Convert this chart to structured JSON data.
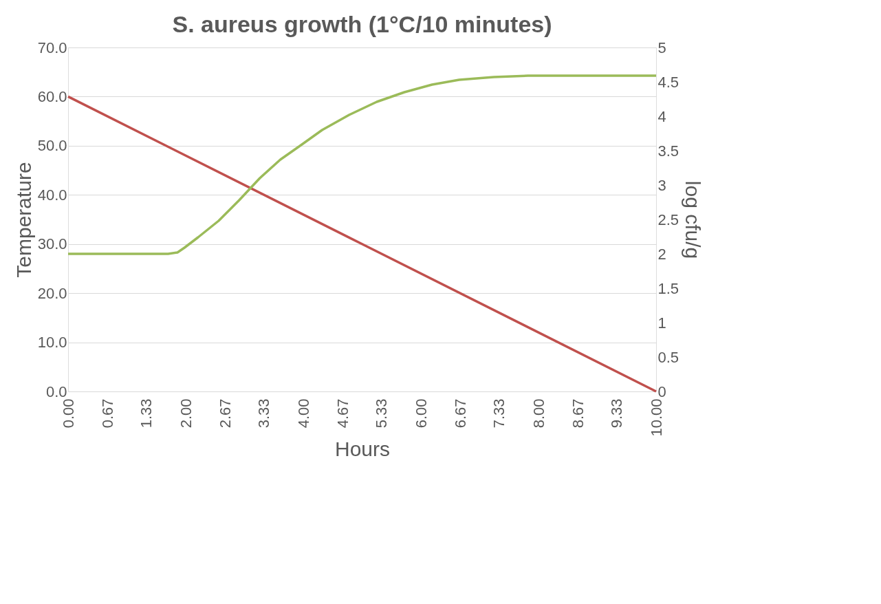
{
  "chart_data": {
    "type": "line",
    "title": "S. aureus growth (1°C/10 minutes)",
    "xlabel": "Hours",
    "ylabel": "Temperature",
    "y2label": "log cfu/g",
    "xlim": [
      0,
      10
    ],
    "xticks": [
      {
        "value": 0,
        "label": "0.00"
      },
      {
        "value": 0.67,
        "label": "0.67"
      },
      {
        "value": 1.33,
        "label": "1.33"
      },
      {
        "value": 2,
        "label": "2.00"
      },
      {
        "value": 2.67,
        "label": "2.67"
      },
      {
        "value": 3.33,
        "label": "3.33"
      },
      {
        "value": 4,
        "label": "4.00"
      },
      {
        "value": 4.67,
        "label": "4.67"
      },
      {
        "value": 5.33,
        "label": "5.33"
      },
      {
        "value": 6,
        "label": "6.00"
      },
      {
        "value": 6.67,
        "label": "6.67"
      },
      {
        "value": 7.33,
        "label": "7.33"
      },
      {
        "value": 8,
        "label": "8.00"
      },
      {
        "value": 8.67,
        "label": "8.67"
      },
      {
        "value": 9.33,
        "label": "9.33"
      },
      {
        "value": 10,
        "label": "10.00"
      }
    ],
    "ylim": [
      0,
      70
    ],
    "yticks": [
      {
        "value": 0,
        "label": "0.0"
      },
      {
        "value": 10,
        "label": "10.0"
      },
      {
        "value": 20,
        "label": "20.0"
      },
      {
        "value": 30,
        "label": "30.0"
      },
      {
        "value": 40,
        "label": "40.0"
      },
      {
        "value": 50,
        "label": "50.0"
      },
      {
        "value": 60,
        "label": "60.0"
      },
      {
        "value": 70,
        "label": "70.0"
      }
    ],
    "y2lim": [
      0,
      5
    ],
    "y2ticks": [
      0,
      0.5,
      1,
      1.5,
      2,
      2.5,
      3,
      3.5,
      4,
      4.5,
      5
    ],
    "grid": "y",
    "marker": "none",
    "line_style": "solid",
    "series": [
      {
        "color": "#c0504d",
        "x": [
          0,
          5,
          10
        ],
        "values": [
          60,
          30,
          0
        ]
      },
      {
        "color": "#9bbb59",
        "axis": "y2",
        "x": [
          0,
          1.0,
          1.7,
          1.86,
          1.98,
          2.21,
          2.56,
          2.91,
          3.26,
          3.61,
          3.96,
          4.32,
          4.78,
          5.25,
          5.72,
          6.19,
          6.65,
          7.24,
          7.82,
          8.5,
          10
        ],
        "values": [
          2.0,
          2.0,
          2.0,
          2.02,
          2.09,
          2.24,
          2.48,
          2.78,
          3.1,
          3.37,
          3.58,
          3.8,
          4.02,
          4.21,
          4.35,
          4.46,
          4.53,
          4.57,
          4.59,
          4.59,
          4.59
        ]
      }
    ]
  }
}
